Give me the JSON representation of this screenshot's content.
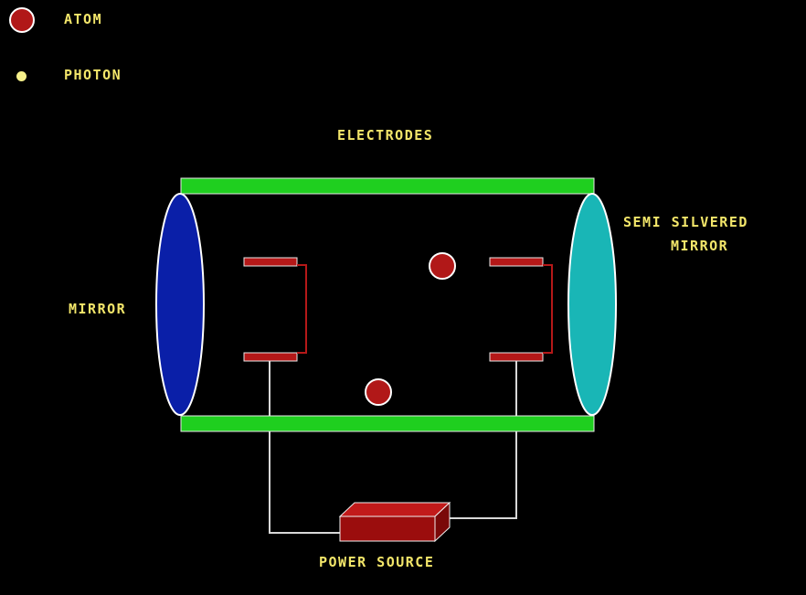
{
  "legend": {
    "atom_label": "ATOM",
    "photon_label": "PHOTON"
  },
  "labels": {
    "electrodes": "ELECTRODES",
    "semi_silvered_mirror_line1": "SEMI SILVERED",
    "semi_silvered_mirror_line2": "MIRROR",
    "mirror": "MIRROR",
    "power_source": "POWER SOURCE"
  },
  "colors": {
    "background": "#000000",
    "label_text": "#f3e66a",
    "tube_wall": "#1fcf1f",
    "mirror": "#0a1fa8",
    "semi_silvered_mirror": "#19b6b6",
    "electrode": "#b51818",
    "atom": "#b11818",
    "photon": "#f6f08a",
    "wire": "#d8d8d8",
    "power_source_body": "#9b0d0d"
  }
}
